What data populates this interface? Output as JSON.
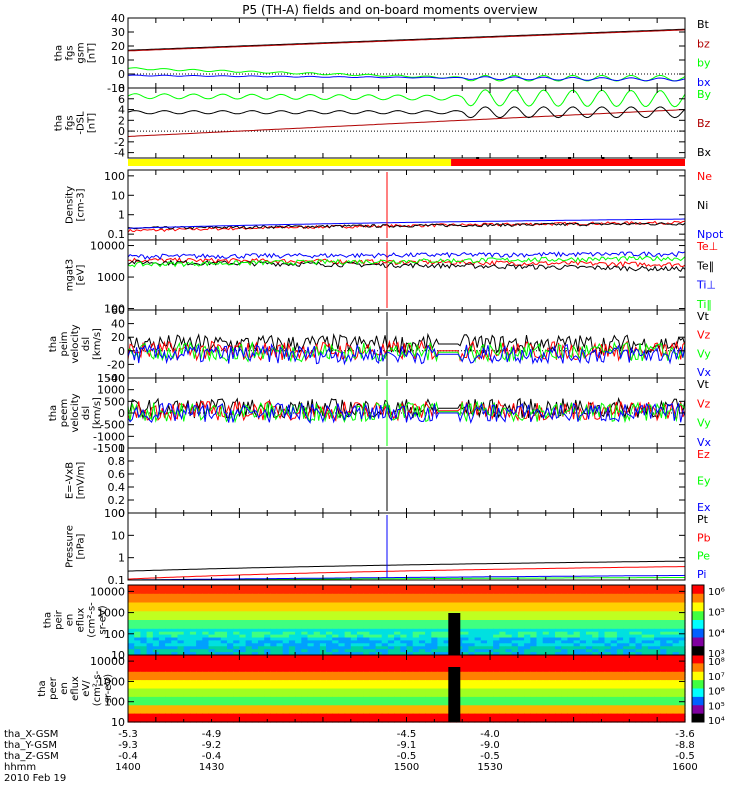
{
  "title": "P5 (TH-A) fields and on-board moments overview",
  "colors": {
    "black": "#000000",
    "red": "#ff0000",
    "green": "#00ff00",
    "blue": "#0000ff",
    "brick": "#b00000",
    "yellow": "#ffff00"
  },
  "chart_data": {
    "type": "line",
    "x_range": [
      1400,
      1600
    ],
    "panels": [
      {
        "id": "fgs_gsm",
        "ylabel": [
          "tha",
          "fgs",
          "gsm",
          "[nT]"
        ],
        "ylim": [
          -10,
          40
        ],
        "yticks": [
          40,
          30,
          20,
          10,
          0,
          -10
        ],
        "log": false,
        "legend": [
          "Bt",
          "bz",
          "by",
          "bx"
        ],
        "legend_colors": [
          "black",
          "brick",
          "green",
          "blue"
        ],
        "series": [
          {
            "name": "Bt",
            "color": "black",
            "style": "flat",
            "from": 17,
            "to": 32
          },
          {
            "name": "bz",
            "color": "brick",
            "style": "flat",
            "from": 16.5,
            "to": 31.5
          },
          {
            "name": "by",
            "color": "green",
            "style": "fall",
            "from": 4,
            "to": -3,
            "wave": 2
          },
          {
            "name": "bx",
            "color": "blue",
            "style": "flat",
            "from": -1,
            "to": -4,
            "wave": 1
          }
        ]
      },
      {
        "id": "fgs_gsm_dsl",
        "ylabel": [
          "tha",
          "fgs",
          "-DSL",
          "[nT]"
        ],
        "ylim": [
          -5,
          8
        ],
        "yticks": [
          8,
          6,
          4,
          2,
          0,
          -2,
          -4
        ],
        "log": false,
        "legend": [
          "By",
          "Bz",
          "Bx"
        ],
        "legend_colors": [
          "green",
          "brick",
          "black"
        ],
        "series": [
          {
            "name": "By",
            "color": "green",
            "style": "wavy",
            "from": 6.5,
            "to": 6,
            "wave": 1.5
          },
          {
            "name": "Bz",
            "color": "brick",
            "style": "rise",
            "from": -1,
            "to": 4
          },
          {
            "name": "Bx",
            "color": "black",
            "style": "wavy",
            "from": 3.5,
            "to": 3.5,
            "wave": 1
          }
        ]
      },
      {
        "id": "density",
        "ylabel": [
          "Density",
          "[cm-3]"
        ],
        "ylim": [
          0.05,
          200
        ],
        "yticks": [
          100,
          10,
          1,
          0.1
        ],
        "log": true,
        "legend": [
          "Ne",
          "Ni",
          "Npot"
        ],
        "legend_colors": [
          "red",
          "black",
          "blue"
        ],
        "series": [
          {
            "name": "Ne",
            "color": "red",
            "style": "noisy",
            "from": 0.15,
            "to": 0.4
          },
          {
            "name": "Ni",
            "color": "black",
            "style": "noisy",
            "from": 0.2,
            "to": 0.35
          },
          {
            "name": "Npot",
            "color": "blue",
            "style": "flat",
            "from": 0.2,
            "to": 0.6
          }
        ]
      },
      {
        "id": "temperature",
        "ylabel": [
          "mgat3",
          "[eV]"
        ],
        "ylim": [
          90,
          15000
        ],
        "yticks": [
          10000,
          1000,
          100
        ],
        "log": true,
        "legend": [
          "Te⊥",
          "Te‖",
          "Ti⊥",
          "Ti‖"
        ],
        "legend_colors": [
          "red",
          "black",
          "blue",
          "green"
        ],
        "series": [
          {
            "name": "Te⊥",
            "color": "red",
            "style": "noisy",
            "from": 3500,
            "to": 2500
          },
          {
            "name": "Te‖",
            "color": "black",
            "style": "noisy",
            "from": 3000,
            "to": 1800
          },
          {
            "name": "Ti⊥",
            "color": "blue",
            "style": "noisy",
            "from": 4500,
            "to": 5500
          },
          {
            "name": "Ti‖",
            "color": "green",
            "style": "noisy",
            "from": 2500,
            "to": 4000
          }
        ]
      },
      {
        "id": "peim_velocity",
        "ylabel": [
          "tha",
          "peim",
          "velocity",
          "dsl",
          "[km/s]"
        ],
        "ylim": [
          -40,
          60
        ],
        "yticks": [
          60,
          40,
          20,
          0,
          -20,
          -40
        ],
        "log": false,
        "legend": [
          "Vt",
          "Vz",
          "Vy",
          "Vx"
        ],
        "legend_colors": [
          "black",
          "red",
          "green",
          "blue"
        ],
        "series": [
          {
            "name": "Vt",
            "color": "black",
            "style": "spiky",
            "from": 10,
            "to": 10
          },
          {
            "name": "Vz",
            "color": "red",
            "style": "spiky",
            "from": 0,
            "to": 0
          },
          {
            "name": "Vy",
            "color": "green",
            "style": "spiky",
            "from": -2,
            "to": -2
          },
          {
            "name": "Vx",
            "color": "blue",
            "style": "spiky",
            "from": -5,
            "to": -5
          }
        ]
      },
      {
        "id": "peem_velocity",
        "ylabel": [
          "tha",
          "peem",
          "velocity",
          "dsl",
          "[km/s]"
        ],
        "ylim": [
          -1500,
          1500
        ],
        "yticks": [
          1500,
          1000,
          500,
          0,
          -500,
          -1000,
          -1500
        ],
        "log": false,
        "legend": [
          "Vt",
          "Vz",
          "Vy",
          "Vx"
        ],
        "legend_colors": [
          "black",
          "red",
          "green",
          "blue"
        ],
        "series": [
          {
            "name": "Vt",
            "color": "black",
            "style": "spiky",
            "from": 200,
            "to": 200
          },
          {
            "name": "Vz",
            "color": "red",
            "style": "spiky",
            "from": 100,
            "to": 100
          },
          {
            "name": "Vy",
            "color": "green",
            "style": "spiky",
            "from": 50,
            "to": 50
          },
          {
            "name": "Vx",
            "color": "blue",
            "style": "spiky",
            "from": 0,
            "to": 0
          }
        ]
      },
      {
        "id": "efield",
        "ylabel": [
          "E=-VxB",
          "[mV/m]"
        ],
        "ylim": [
          0,
          1
        ],
        "yticks": [
          1.0,
          0.8,
          0.6,
          0.4,
          0.2,
          0.0
        ],
        "log": false,
        "legend": [
          "Ez",
          "Ey",
          "Ex"
        ],
        "legend_colors": [
          "red",
          "green",
          "blue"
        ],
        "series": []
      },
      {
        "id": "pressure",
        "ylabel": [
          "Pressure",
          "[nPa]"
        ],
        "ylim": [
          0.1,
          100
        ],
        "yticks": [
          100.0,
          10.0,
          1.0,
          0.1
        ],
        "log": true,
        "legend": [
          "Pt",
          "Pb",
          "Pe",
          "Pi"
        ],
        "legend_colors": [
          "black",
          "red",
          "green",
          "blue"
        ],
        "series": [
          {
            "name": "Pt",
            "color": "black",
            "style": "flat",
            "from": 0.25,
            "to": 0.7
          },
          {
            "name": "Pb",
            "color": "red",
            "style": "flat",
            "from": 0.11,
            "to": 0.4
          },
          {
            "name": "Pe",
            "color": "green",
            "style": "flat",
            "from": 0.1,
            "to": 0.13
          },
          {
            "name": "Pi",
            "color": "blue",
            "style": "flat",
            "from": 0.1,
            "to": 0.16
          }
        ]
      },
      {
        "id": "peir_eflux",
        "ylabel": [
          "tha",
          "peir",
          "en",
          "eflux",
          "(cm²-s-",
          "sr-eV)"
        ],
        "ylim": [
          10,
          20000
        ],
        "yticks": [
          10000,
          1000,
          100,
          10
        ],
        "log": true,
        "type": "spectrogram",
        "colorbar": {
          "labels": [
            "10⁶",
            "10⁵",
            "10⁴",
            "10³"
          ]
        }
      },
      {
        "id": "peer_eflux",
        "ylabel": [
          "tha",
          "peer",
          "en",
          "eflux",
          "eV/",
          "(cm²-s-",
          "sr-eV)"
        ],
        "ylim": [
          10,
          20000
        ],
        "yticks": [
          10000,
          1000,
          100,
          10
        ],
        "log": true,
        "type": "spectrogram",
        "colorbar": {
          "labels": [
            "10⁸",
            "10⁷",
            "10⁶",
            "10⁵",
            "10⁴"
          ]
        }
      }
    ],
    "mode_bar": {
      "segments": [
        {
          "from": 1400,
          "to": 1516,
          "color": "yellow"
        },
        {
          "from": 1516,
          "to": 1600,
          "color": "red"
        }
      ]
    },
    "event_time": 1493,
    "gap_time": 1515,
    "xaxis_rows": [
      {
        "label": "tha_X-GSM",
        "values": [
          "-5.3",
          "-4.9",
          "-4.5",
          "-4.0",
          "-3.6"
        ]
      },
      {
        "label": "tha_Y-GSM",
        "values": [
          "-9.3",
          "-9.2",
          "-9.1",
          "-9.0",
          "-8.8"
        ]
      },
      {
        "label": "tha_Z-GSM",
        "values": [
          "-0.4",
          "-0.4",
          "-0.5",
          "-0.5",
          "-0.5"
        ]
      },
      {
        "label": "hhmm",
        "values": [
          "1400",
          "1430",
          "1500",
          "1530",
          "1600"
        ]
      }
    ],
    "date": "2010 Feb 19"
  }
}
